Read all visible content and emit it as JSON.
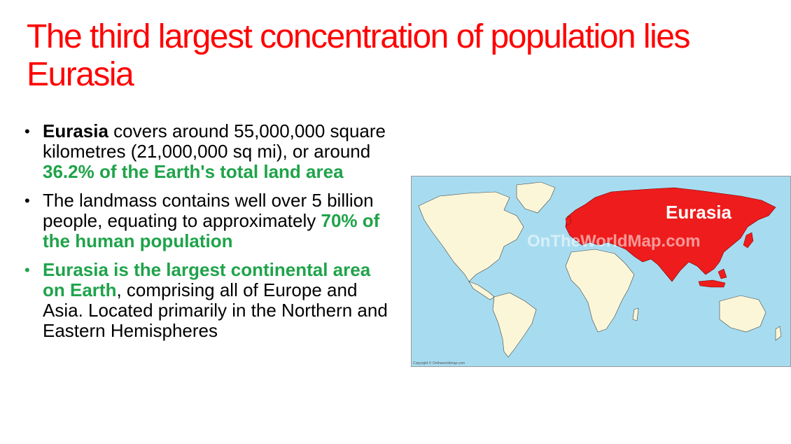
{
  "slide": {
    "title": "The third largest concentration of population lies Eurasia"
  },
  "bullets": [
    {
      "b1_bold": "Eurasia",
      "b1_text": " covers around 55,000,000 square kilometres (21,000,000 sq mi), or around ",
      "b1_green": "36.2% of the Earth's total land area"
    },
    {
      "b2_text": "The landmass contains well over 5 billion people, equating to approximately ",
      "b2_green": "70% of the human population"
    },
    {
      "b3_green": "Eurasia is the largest continental area on Earth",
      "b3_text": ", comprising all of Europe and Asia. Located primarily in the Northern and Eastern Hemispheres"
    }
  ],
  "map": {
    "label": "Eurasia",
    "watermark": "OnTheWorldMap.com",
    "copyright": "Copyright © Ontheworldmap.com",
    "colors": {
      "ocean": "#a7dcf0",
      "land": "#fbf6d8",
      "eurasia": "#ee1c1c"
    }
  }
}
